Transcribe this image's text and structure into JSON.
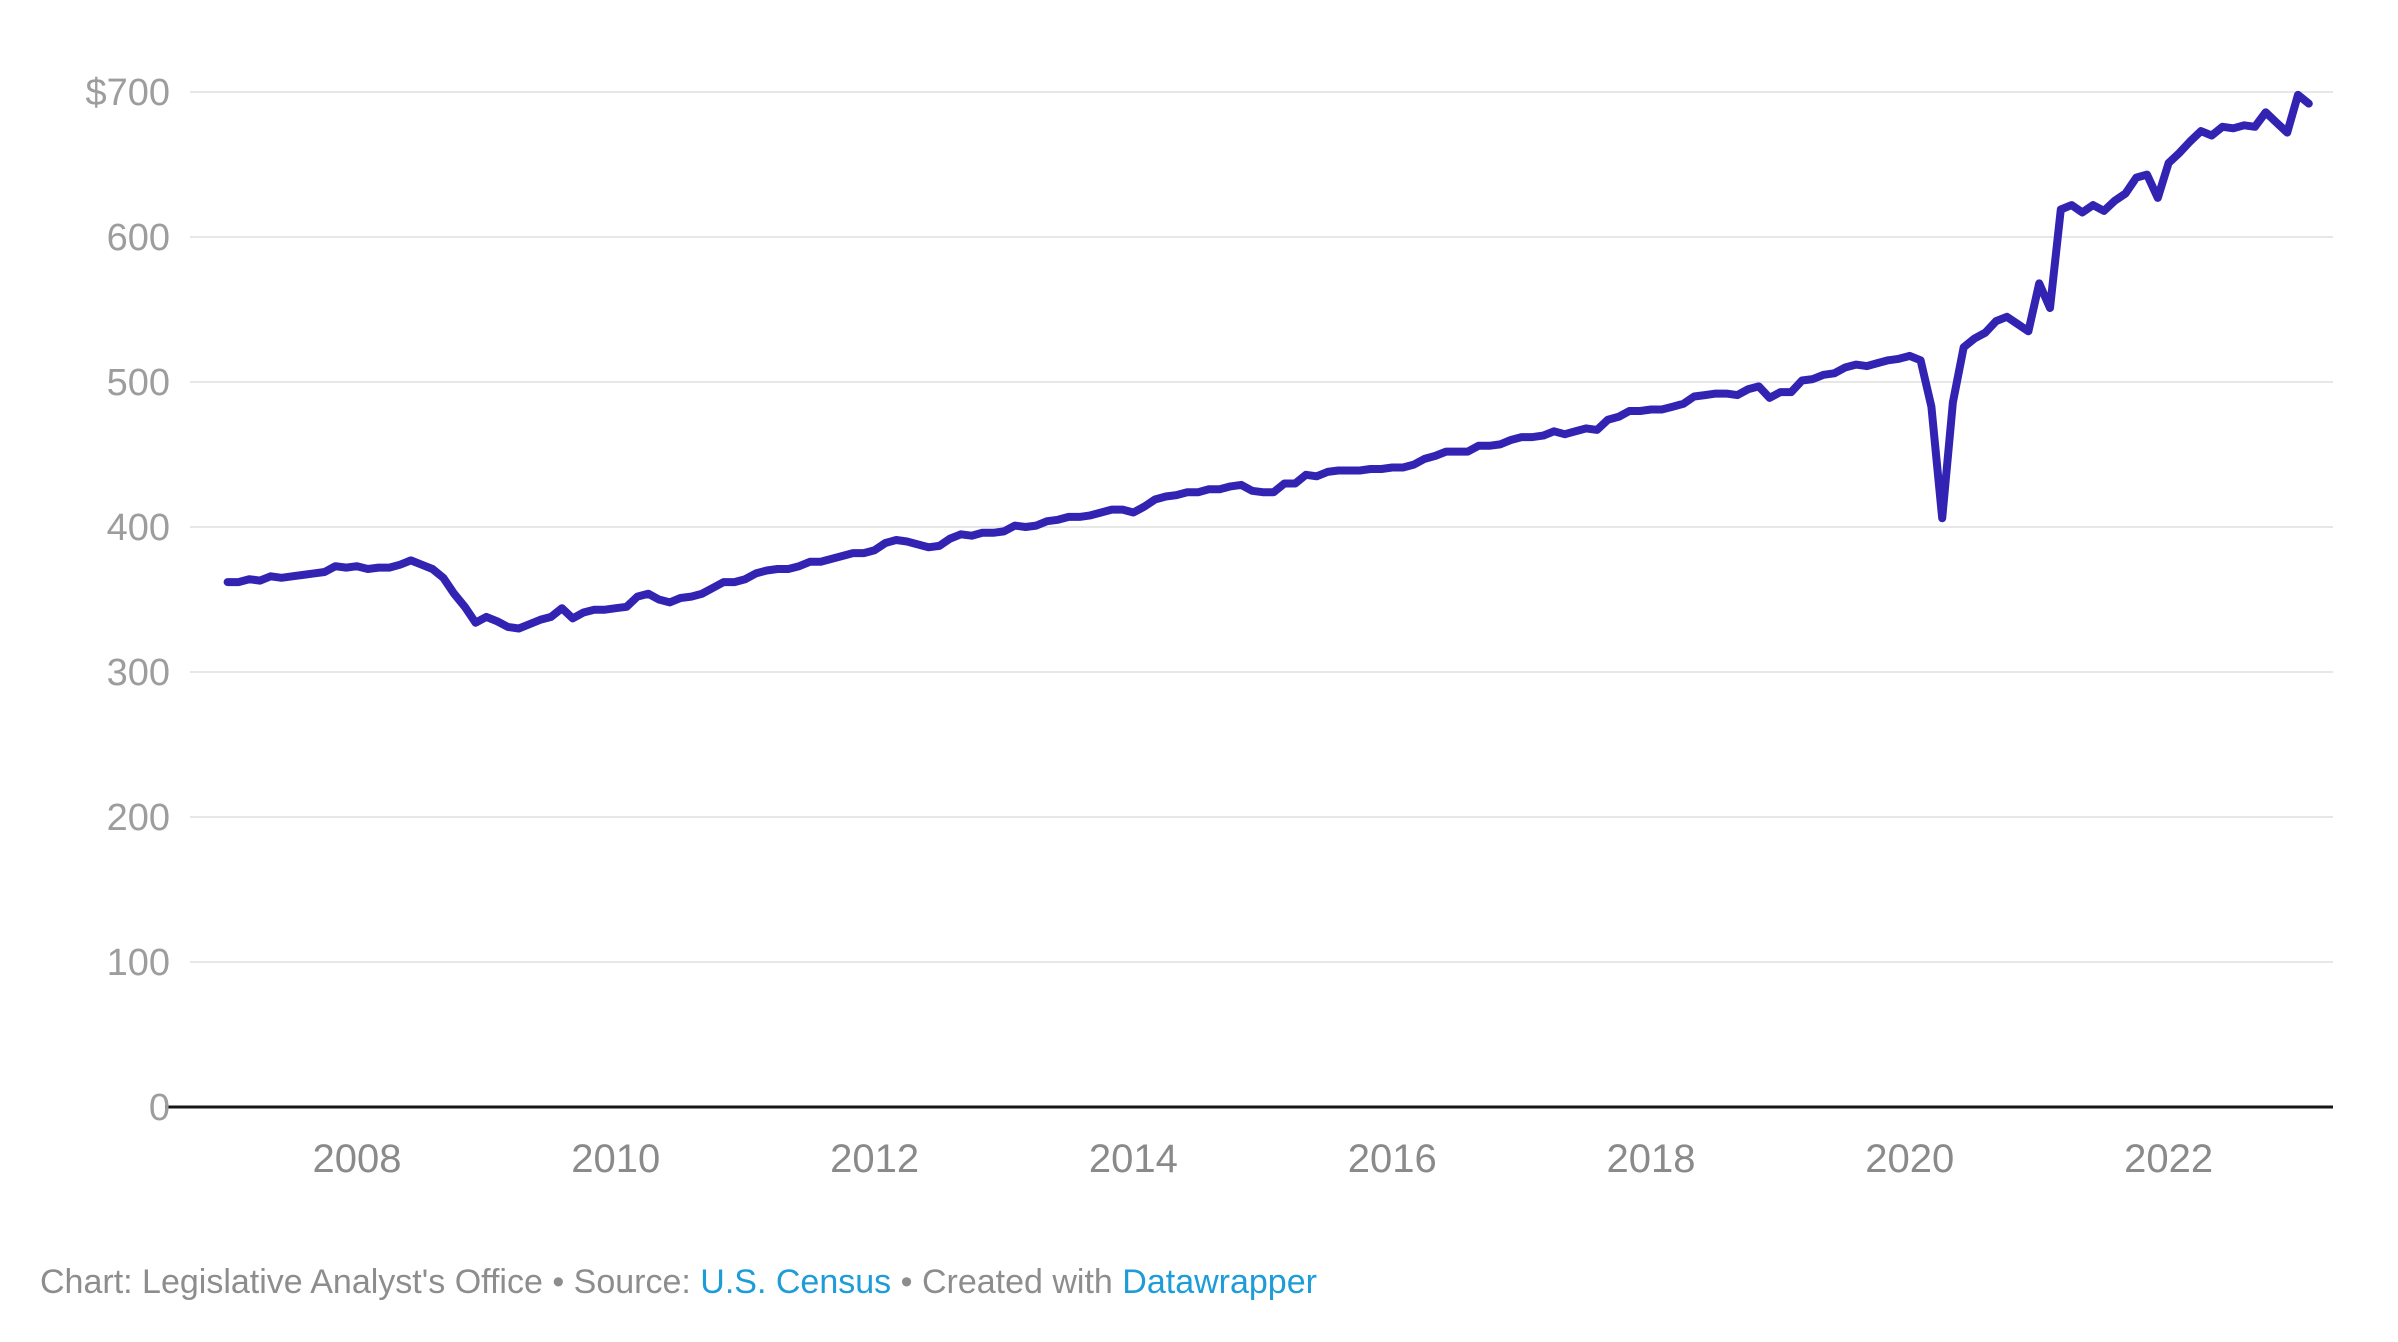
{
  "chart_data": {
    "type": "line",
    "title": "",
    "x_start_year": 2007,
    "frequency": "monthly",
    "values": [
      362,
      362,
      364,
      363,
      366,
      365,
      366,
      367,
      368,
      369,
      373,
      372,
      373,
      371,
      372,
      372,
      374,
      377,
      374,
      371,
      365,
      354,
      345,
      334,
      338,
      335,
      331,
      330,
      333,
      336,
      338,
      344,
      337,
      341,
      343,
      343,
      344,
      345,
      352,
      354,
      350,
      348,
      351,
      352,
      354,
      358,
      362,
      362,
      364,
      368,
      370,
      371,
      371,
      373,
      376,
      376,
      378,
      380,
      382,
      382,
      384,
      389,
      391,
      390,
      388,
      386,
      387,
      392,
      395,
      394,
      396,
      396,
      397,
      401,
      400,
      401,
      404,
      405,
      407,
      407,
      408,
      410,
      412,
      412,
      410,
      414,
      419,
      421,
      422,
      424,
      424,
      426,
      426,
      428,
      429,
      425,
      424,
      424,
      430,
      430,
      436,
      435,
      438,
      439,
      439,
      439,
      440,
      440,
      441,
      441,
      443,
      447,
      449,
      452,
      452,
      452,
      456,
      456,
      457,
      460,
      462,
      462,
      463,
      466,
      464,
      466,
      468,
      467,
      474,
      476,
      480,
      480,
      481,
      481,
      483,
      485,
      490,
      491,
      492,
      492,
      491,
      495,
      497,
      489,
      493,
      493,
      501,
      502,
      505,
      506,
      510,
      512,
      511,
      513,
      515,
      516,
      518,
      515,
      483,
      406,
      486,
      524,
      530,
      534,
      542,
      545,
      540,
      535,
      568,
      551,
      619,
      622,
      617,
      622,
      618,
      625,
      630,
      641,
      643,
      627,
      651,
      658,
      666,
      673,
      670,
      676,
      675,
      677,
      676,
      686,
      679,
      672,
      698,
      692
    ],
    "ylim": [
      0,
      700
    ],
    "ytick_interval": 100,
    "yticks": [
      {
        "value": 700,
        "label": "$700"
      },
      {
        "value": 600,
        "label": "600"
      },
      {
        "value": 500,
        "label": "500"
      },
      {
        "value": 400,
        "label": "400"
      },
      {
        "value": 300,
        "label": "300"
      },
      {
        "value": 200,
        "label": "200"
      },
      {
        "value": 100,
        "label": "100"
      },
      {
        "value": 0,
        "label": "0"
      }
    ],
    "xticks": [
      {
        "year": 2008,
        "label": "2008"
      },
      {
        "year": 2010,
        "label": "2010"
      },
      {
        "year": 2012,
        "label": "2012"
      },
      {
        "year": 2014,
        "label": "2014"
      },
      {
        "year": 2016,
        "label": "2016"
      },
      {
        "year": 2018,
        "label": "2018"
      },
      {
        "year": 2020,
        "label": "2020"
      },
      {
        "year": 2022,
        "label": "2022"
      }
    ],
    "grid": "horizontal",
    "legend": "none",
    "colors": {
      "line": "#3323b3",
      "grid": "#e7e7e7",
      "axis": "#161616",
      "ytick_text": "#9d9d9d",
      "xtick_text": "#8a8a8a"
    }
  },
  "footer": {
    "prefix": "Chart: Legislative Analyst's Office • Source: ",
    "source_link": "U.S. Census",
    "middle": " • Created with ",
    "tool_link": "Datawrapper"
  }
}
